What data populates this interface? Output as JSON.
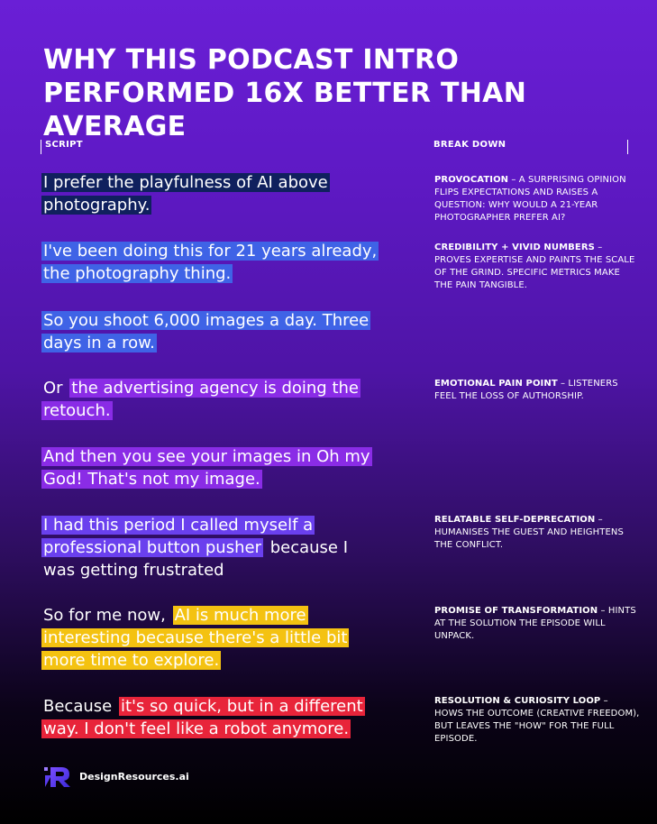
{
  "title": "WHY THIS PODCAST INTRO PERFORMED 16X BETTER THAN AVERAGE",
  "columns": {
    "script": "SCRIPT",
    "breakdown": "BREAK DOWN"
  },
  "script": {
    "l1": "I prefer the playfulness of AI above photography.",
    "l2": " I've been doing this for 21 years already, the photography thing.",
    "l3": "So you shoot 6,000 images a day. Three days in a row.",
    "l4_plain": "Or ",
    "l4_hl": "the advertising agency is doing the retouch.",
    "l5": "And then you see your images in Oh my God! That's not my image.",
    "l6_hl": "I had this period I called myself a professional button pusher",
    "l6_plain": " because I was getting frustrated",
    "l7_plain": "So for me now, ",
    "l7_hl": "AI is much more interesting because there's a little bit more time to explore.",
    "l8_plain": "Because ",
    "l8_hl": "it's so quick, but in a different way. I don't feel like a robot anymore."
  },
  "highlight_colors": {
    "navy": "#10205e",
    "blue": "#3f63e6",
    "violet": "#8a2ce6",
    "purple": "#6a40ee",
    "yellow": "#f4c211",
    "red": "#e8243a"
  },
  "breakdown": {
    "b1_head": "PROVOCATION",
    "b1_body": " – A SURPRISING OPINION FLIPS EXPECTATIONS AND RAISES A QUESTION: WHY WOULD A 21-YEAR PHOTOGRAPHER PREFER AI?",
    "b2_head": "CREDIBILITY + VIVID NUMBERS",
    "b2_body": " – PROVES EXPERTISE AND PAINTS THE SCALE OF THE GRIND. SPECIFIC METRICS MAKE THE PAIN TANGIBLE.",
    "b3_head": "EMOTIONAL PAIN POINT",
    "b3_body": " – LISTENERS FEEL THE LOSS OF AUTHORSHIP.",
    "b4_head": "RELATABLE SELF-DEPRECATION",
    "b4_body": " – HUMANISES THE GUEST AND HEIGHTENS THE CONFLICT.",
    "b5_head": "PROMISE OF TRANSFORMATION",
    "b5_body": " – HINTS AT THE SOLUTION THE EPISODE WILL UNPACK.",
    "b6_head": "RESOLUTION & CURIOSITY LOOP",
    "b6_body": " – HOWS THE OUTCOME (CREATIVE FREEDOM), BUT LEAVES THE \"HOW\" FOR THE FULL EPISODE."
  },
  "logo": {
    "icon": "designresources-logo-icon",
    "text": "DesignResources.ai"
  }
}
